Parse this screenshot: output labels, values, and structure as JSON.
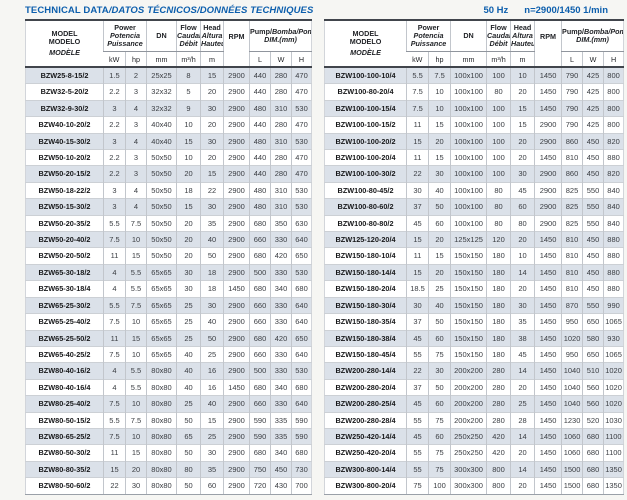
{
  "page": {
    "title_en": "TECHNICAL DATA",
    "title_translations": "/DATOS TÉCNICOS/DONNÉES TECHNIQUES",
    "frequency": "50 Hz",
    "speed": "n=2900/1450 1/min"
  },
  "colors": {
    "accent_blue": "#0d5fad",
    "row_shade": "#dbe1e9",
    "border_dark": "#41454c",
    "border_light": "#c2c6cc",
    "text": "#3a3d42"
  },
  "table_header": {
    "model": [
      "MODEL",
      "MODELO",
      "MODÈLE"
    ],
    "power": {
      "label": "Power",
      "translations": [
        "Potencia",
        "Puissance"
      ],
      "units": [
        "kW",
        "hp"
      ]
    },
    "dn": {
      "label": "DN",
      "unit": "mm"
    },
    "flow": {
      "label": "Flow",
      "translations": [
        "Caudal",
        "Débit"
      ],
      "unit": "m³/h"
    },
    "head": {
      "label": "Head",
      "translations": [
        "Altura",
        "Hauteur"
      ],
      "unit": "m"
    },
    "rpm": {
      "label": "RPM"
    },
    "dim": {
      "label_en": "Pump/",
      "label_tr": "Bomba/Pompe",
      "label2": "DIM.(mm)",
      "units": [
        "L",
        "W",
        "H"
      ]
    }
  },
  "left_table": {
    "rows": [
      [
        "BZW25-8-15/2",
        "1.5",
        "2",
        "25x25",
        "8",
        "15",
        "2900",
        "440",
        "280",
        "470"
      ],
      [
        "BZW32-5-20/2",
        "2.2",
        "3",
        "32x32",
        "5",
        "20",
        "2900",
        "440",
        "280",
        "470"
      ],
      [
        "BZW32-9-30/2",
        "3",
        "4",
        "32x32",
        "9",
        "30",
        "2900",
        "480",
        "310",
        "530"
      ],
      [
        "BZW40-10-20/2",
        "2.2",
        "3",
        "40x40",
        "10",
        "20",
        "2900",
        "440",
        "280",
        "470"
      ],
      [
        "BZW40-15-30/2",
        "3",
        "4",
        "40x40",
        "15",
        "30",
        "2900",
        "480",
        "310",
        "530"
      ],
      [
        "BZW50-10-20/2",
        "2.2",
        "3",
        "50x50",
        "10",
        "20",
        "2900",
        "440",
        "280",
        "470"
      ],
      [
        "BZW50-20-15/2",
        "2.2",
        "3",
        "50x50",
        "20",
        "15",
        "2900",
        "440",
        "280",
        "470"
      ],
      [
        "BZW50-18-22/2",
        "3",
        "4",
        "50x50",
        "18",
        "22",
        "2900",
        "480",
        "310",
        "530"
      ],
      [
        "BZW50-15-30/2",
        "3",
        "4",
        "50x50",
        "15",
        "30",
        "2900",
        "480",
        "310",
        "530"
      ],
      [
        "BZW50-20-35/2",
        "5.5",
        "7.5",
        "50x50",
        "20",
        "35",
        "2900",
        "680",
        "350",
        "630"
      ],
      [
        "BZW50-20-40/2",
        "7.5",
        "10",
        "50x50",
        "20",
        "40",
        "2900",
        "660",
        "330",
        "640"
      ],
      [
        "BZW50-20-50/2",
        "11",
        "15",
        "50x50",
        "20",
        "50",
        "2900",
        "680",
        "420",
        "650"
      ],
      [
        "BZW65-30-18/2",
        "4",
        "5.5",
        "65x65",
        "30",
        "18",
        "2900",
        "500",
        "330",
        "530"
      ],
      [
        "BZW65-30-18/4",
        "4",
        "5.5",
        "65x65",
        "30",
        "18",
        "1450",
        "680",
        "340",
        "680"
      ],
      [
        "BZW65-25-30/2",
        "5.5",
        "7.5",
        "65x65",
        "25",
        "30",
        "2900",
        "660",
        "330",
        "640"
      ],
      [
        "BZW65-25-40/2",
        "7.5",
        "10",
        "65x65",
        "25",
        "40",
        "2900",
        "660",
        "330",
        "640"
      ],
      [
        "BZW65-25-50/2",
        "11",
        "15",
        "65x65",
        "25",
        "50",
        "2900",
        "680",
        "420",
        "650"
      ],
      [
        "BZW65-40-25/2",
        "7.5",
        "10",
        "65x65",
        "40",
        "25",
        "2900",
        "660",
        "330",
        "640"
      ],
      [
        "BZW80-40-16/2",
        "4",
        "5.5",
        "80x80",
        "40",
        "16",
        "2900",
        "500",
        "330",
        "530"
      ],
      [
        "BZW80-40-16/4",
        "4",
        "5.5",
        "80x80",
        "40",
        "16",
        "1450",
        "680",
        "340",
        "680"
      ],
      [
        "BZW80-25-40/2",
        "7.5",
        "10",
        "80x80",
        "25",
        "40",
        "2900",
        "660",
        "330",
        "640"
      ],
      [
        "BZW80-50-15/2",
        "5.5",
        "7.5",
        "80x80",
        "50",
        "15",
        "2900",
        "590",
        "335",
        "590"
      ],
      [
        "BZW80-65-25/2",
        "7.5",
        "10",
        "80x80",
        "65",
        "25",
        "2900",
        "590",
        "335",
        "590"
      ],
      [
        "BZW80-50-30/2",
        "11",
        "15",
        "80x80",
        "50",
        "30",
        "2900",
        "680",
        "340",
        "680"
      ],
      [
        "BZW80-80-35/2",
        "15",
        "20",
        "80x80",
        "80",
        "35",
        "2900",
        "750",
        "450",
        "730"
      ],
      [
        "BZW80-50-60/2",
        "22",
        "30",
        "80x80",
        "50",
        "60",
        "2900",
        "720",
        "430",
        "700"
      ]
    ]
  },
  "right_table": {
    "rows": [
      [
        "BZW100-100-10/4",
        "5.5",
        "7.5",
        "100x100",
        "100",
        "10",
        "1450",
        "790",
        "425",
        "800"
      ],
      [
        "BZW100-80-20/4",
        "7.5",
        "10",
        "100x100",
        "80",
        "20",
        "1450",
        "790",
        "425",
        "800"
      ],
      [
        "BZW100-100-15/4",
        "7.5",
        "10",
        "100x100",
        "100",
        "15",
        "1450",
        "790",
        "425",
        "800"
      ],
      [
        "BZW100-100-15/2",
        "11",
        "15",
        "100x100",
        "100",
        "15",
        "2900",
        "790",
        "425",
        "800"
      ],
      [
        "BZW100-100-20/2",
        "15",
        "20",
        "100x100",
        "100",
        "20",
        "2900",
        "860",
        "450",
        "820"
      ],
      [
        "BZW100-100-20/4",
        "11",
        "15",
        "100x100",
        "100",
        "20",
        "1450",
        "810",
        "450",
        "880"
      ],
      [
        "BZW100-100-30/2",
        "22",
        "30",
        "100x100",
        "100",
        "30",
        "2900",
        "860",
        "450",
        "820"
      ],
      [
        "BZW100-80-45/2",
        "30",
        "40",
        "100x100",
        "80",
        "45",
        "2900",
        "825",
        "550",
        "840"
      ],
      [
        "BZW100-80-60/2",
        "37",
        "50",
        "100x100",
        "80",
        "60",
        "2900",
        "825",
        "550",
        "840"
      ],
      [
        "BZW100-80-80/2",
        "45",
        "60",
        "100x100",
        "80",
        "80",
        "2900",
        "825",
        "550",
        "840"
      ],
      [
        "BZW125-120-20/4",
        "15",
        "20",
        "125x125",
        "120",
        "20",
        "1450",
        "810",
        "450",
        "880"
      ],
      [
        "BZW150-180-10/4",
        "11",
        "15",
        "150x150",
        "180",
        "10",
        "1450",
        "810",
        "450",
        "880"
      ],
      [
        "BZW150-180-14/4",
        "15",
        "20",
        "150x150",
        "180",
        "14",
        "1450",
        "810",
        "450",
        "880"
      ],
      [
        "BZW150-180-20/4",
        "18.5",
        "25",
        "150x150",
        "180",
        "20",
        "1450",
        "810",
        "450",
        "880"
      ],
      [
        "BZW150-180-30/4",
        "30",
        "40",
        "150x150",
        "180",
        "30",
        "1450",
        "870",
        "550",
        "990"
      ],
      [
        "BZW150-180-35/4",
        "37",
        "50",
        "150x150",
        "180",
        "35",
        "1450",
        "950",
        "650",
        "1065"
      ],
      [
        "BZW150-180-38/4",
        "45",
        "60",
        "150x150",
        "180",
        "38",
        "1450",
        "1020",
        "580",
        "930"
      ],
      [
        "BZW150-180-45/4",
        "55",
        "75",
        "150x150",
        "180",
        "45",
        "1450",
        "950",
        "650",
        "1065"
      ],
      [
        "BZW200-280-14/4",
        "22",
        "30",
        "200x200",
        "280",
        "14",
        "1450",
        "1040",
        "510",
        "1020"
      ],
      [
        "BZW200-280-20/4",
        "37",
        "50",
        "200x200",
        "280",
        "20",
        "1450",
        "1040",
        "560",
        "1020"
      ],
      [
        "BZW200-280-25/4",
        "45",
        "60",
        "200x200",
        "280",
        "25",
        "1450",
        "1040",
        "560",
        "1020"
      ],
      [
        "BZW200-280-28/4",
        "55",
        "75",
        "200x200",
        "280",
        "28",
        "1450",
        "1230",
        "520",
        "1030"
      ],
      [
        "BZW250-420-14/4",
        "45",
        "60",
        "250x250",
        "420",
        "14",
        "1450",
        "1060",
        "680",
        "1100"
      ],
      [
        "BZW250-420-20/4",
        "55",
        "75",
        "250x250",
        "420",
        "20",
        "1450",
        "1060",
        "680",
        "1100"
      ],
      [
        "BZW300-800-14/4",
        "55",
        "75",
        "300x300",
        "800",
        "14",
        "1450",
        "1500",
        "680",
        "1350"
      ],
      [
        "BZW300-800-20/4",
        "75",
        "100",
        "300x300",
        "800",
        "20",
        "1450",
        "1500",
        "680",
        "1350"
      ]
    ]
  }
}
